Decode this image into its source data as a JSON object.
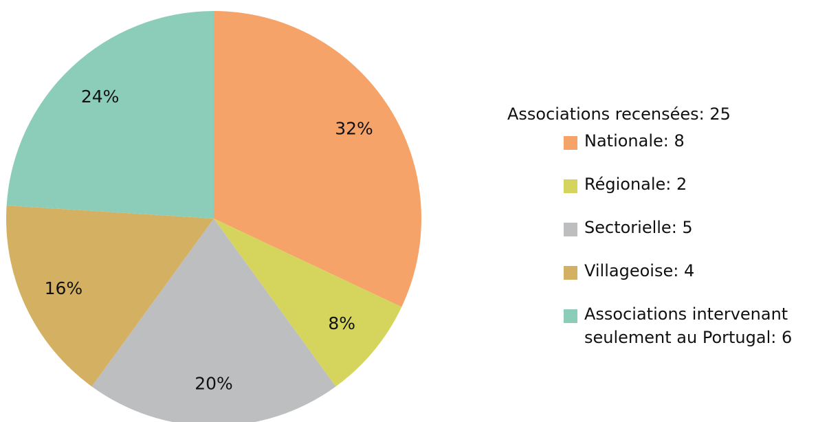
{
  "chart_data": {
    "type": "pie",
    "legend_title": "Associations recensées: 25",
    "categories": [
      "Nationale: 8",
      "Régionale: 2",
      "Sectorielle: 5",
      "Villageoise: 4",
      "Associations intervenant seulement au Portugal: 6"
    ],
    "values": [
      32,
      8,
      20,
      16,
      24
    ],
    "value_labels": [
      "32%",
      "8%",
      "20%",
      "16%",
      "24%"
    ],
    "colors": [
      "#f6a36a",
      "#d5d55e",
      "#bdbec0",
      "#d4b062",
      "#8ccdb9"
    ],
    "legend": "right"
  }
}
